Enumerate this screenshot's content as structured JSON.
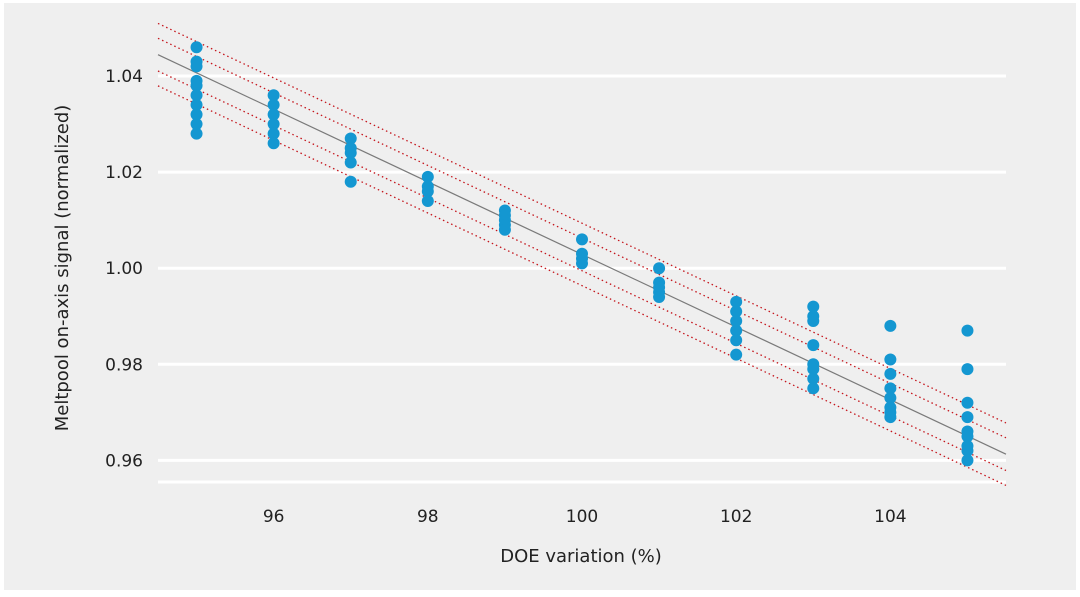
{
  "chart_data": {
    "type": "scatter",
    "title": "",
    "xlabel": "DOE variation (%)",
    "ylabel": "Meltpool on-axis signal (normalized)",
    "xlim": [
      94.5,
      105.5
    ],
    "ylim": [
      0.9555,
      1.0475
    ],
    "xticks": [
      96,
      98,
      100,
      102,
      104
    ],
    "xtick_labels": [
      "96",
      "98",
      "100",
      "102",
      "104"
    ],
    "yticks": [
      0.96,
      0.98,
      1.0,
      1.02,
      1.04
    ],
    "ytick_labels": [
      "0.96",
      "0.98",
      "1.00",
      "1.02",
      "1.04"
    ],
    "grid": "horizontal",
    "legend": "none",
    "points": [
      [
        95,
        1.046
      ],
      [
        95,
        1.043
      ],
      [
        95,
        1.042
      ],
      [
        95,
        1.039
      ],
      [
        95,
        1.038
      ],
      [
        95,
        1.036
      ],
      [
        95,
        1.034
      ],
      [
        95,
        1.032
      ],
      [
        95,
        1.03
      ],
      [
        95,
        1.028
      ],
      [
        96,
        1.036
      ],
      [
        96,
        1.034
      ],
      [
        96,
        1.032
      ],
      [
        96,
        1.03
      ],
      [
        96,
        1.028
      ],
      [
        96,
        1.026
      ],
      [
        97,
        1.027
      ],
      [
        97,
        1.025
      ],
      [
        97,
        1.024
      ],
      [
        97,
        1.022
      ],
      [
        97,
        1.018
      ],
      [
        98,
        1.019
      ],
      [
        98,
        1.017
      ],
      [
        98,
        1.016
      ],
      [
        98,
        1.014
      ],
      [
        99,
        1.012
      ],
      [
        99,
        1.011
      ],
      [
        99,
        1.01
      ],
      [
        99,
        1.009
      ],
      [
        99,
        1.008
      ],
      [
        100,
        1.006
      ],
      [
        100,
        1.003
      ],
      [
        100,
        1.002
      ],
      [
        100,
        1.001
      ],
      [
        101,
        1.0
      ],
      [
        101,
        0.997
      ],
      [
        101,
        0.996
      ],
      [
        101,
        0.995
      ],
      [
        101,
        0.994
      ],
      [
        102,
        0.993
      ],
      [
        102,
        0.991
      ],
      [
        102,
        0.989
      ],
      [
        102,
        0.987
      ],
      [
        102,
        0.985
      ],
      [
        102,
        0.982
      ],
      [
        103,
        0.992
      ],
      [
        103,
        0.99
      ],
      [
        103,
        0.989
      ],
      [
        103,
        0.984
      ],
      [
        103,
        0.98
      ],
      [
        103,
        0.979
      ],
      [
        103,
        0.977
      ],
      [
        103,
        0.975
      ],
      [
        104,
        0.988
      ],
      [
        104,
        0.981
      ],
      [
        104,
        0.978
      ],
      [
        104,
        0.975
      ],
      [
        104,
        0.973
      ],
      [
        104,
        0.971
      ],
      [
        104,
        0.97
      ],
      [
        104,
        0.969
      ],
      [
        105,
        0.987
      ],
      [
        105,
        0.979
      ],
      [
        105,
        0.972
      ],
      [
        105,
        0.969
      ],
      [
        105,
        0.966
      ],
      [
        105,
        0.965
      ],
      [
        105,
        0.963
      ],
      [
        105,
        0.962
      ],
      [
        105,
        0.96
      ]
    ],
    "fit_line": {
      "slope": -0.00756,
      "intercept": 1.75887
    },
    "bound_offsets": [
      0.0065,
      0.0034,
      -0.0034,
      -0.0065
    ],
    "colors": {
      "background": "#efefef",
      "grid": "#ffffff",
      "point": "#1497d1",
      "fit_line": "#7a7a7a",
      "bounds": "#c4151c"
    }
  }
}
